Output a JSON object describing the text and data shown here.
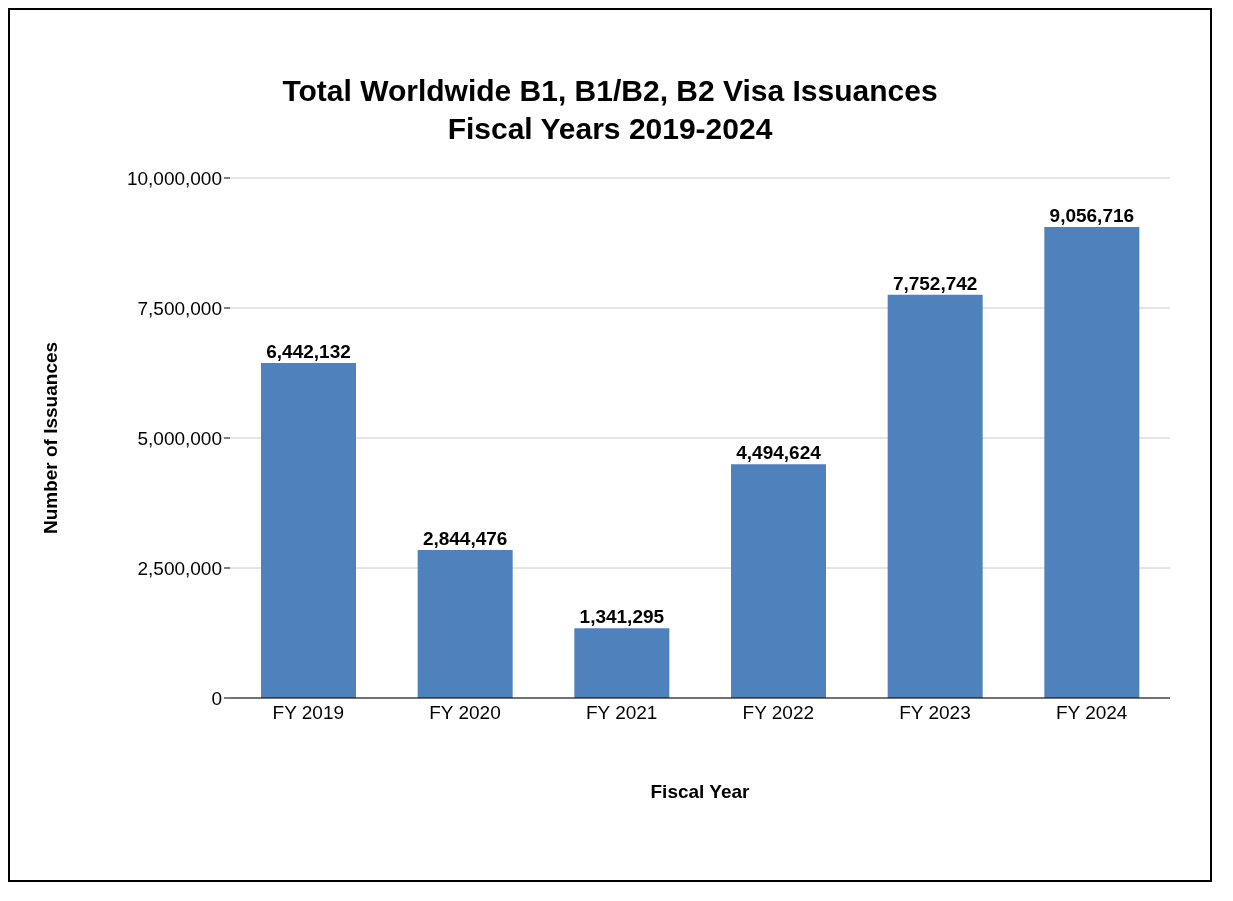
{
  "chart_data": {
    "type": "bar",
    "title": "Total Worldwide B1, B1/B2, B2 Visa Issuances\nFiscal Years 2019-2024",
    "xlabel": "Fiscal Year",
    "ylabel": "Number of Issuances",
    "categories": [
      "FY 2019",
      "FY 2020",
      "FY 2021",
      "FY 2022",
      "FY 2023",
      "FY 2024"
    ],
    "values": [
      6442132,
      2844476,
      1341295,
      4494624,
      7752742,
      9056716
    ],
    "value_labels": [
      "6,442,132",
      "2,844,476",
      "1,341,295",
      "4,494,624",
      "7,752,742",
      "9,056,716"
    ],
    "color": "#4f81bd",
    "ylim": [
      0,
      10000000
    ],
    "yticks": [
      0,
      {
        "value": 2500000,
        "label": "2,500,000"
      },
      {
        "value": 5000000,
        "label": "5,000,000"
      },
      {
        "value": 7500000,
        "label": "7,500,000"
      },
      {
        "value": 10000000,
        "label": "10,000,000"
      }
    ],
    "grid": "y"
  }
}
